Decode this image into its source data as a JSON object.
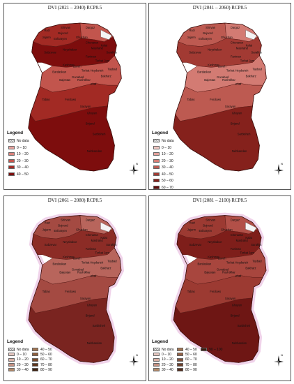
{
  "panels": [
    {
      "title": "DVI (2021 – 2040) RCP8.5",
      "legend_title": "Legend",
      "legend": [
        {
          "label": "No data",
          "color": "nodata"
        },
        {
          "label": "0 – 10",
          "color": "#e8a4a0"
        },
        {
          "label": "10 – 20",
          "color": "#d9807a"
        },
        {
          "label": "20 – 30",
          "color": "#c2554d"
        },
        {
          "label": "30 – 40",
          "color": "#a22a24"
        },
        {
          "label": "40 – 50",
          "color": "#7d0d0d"
        }
      ],
      "shades": [
        "#a22a24",
        "#c2554d",
        "#7d0d0d",
        "#c2554d",
        "#a22a24",
        "#7d0d0d"
      ]
    },
    {
      "title": "DVI (2041 – 2060) RCP8.5",
      "legend_title": "Legend",
      "legend": [
        {
          "label": "No data",
          "color": "nodata"
        },
        {
          "label": "0 – 10",
          "color": "#f2c9c4"
        },
        {
          "label": "10 – 20",
          "color": "#e3a09a"
        },
        {
          "label": "20 – 30",
          "color": "#d37b73"
        },
        {
          "label": "30 – 40",
          "color": "#bd5a51"
        },
        {
          "label": "40 – 50",
          "color": "#a23a33"
        },
        {
          "label": "50 – 60",
          "color": "#85211c"
        },
        {
          "label": "60 – 70",
          "color": "#610a0a"
        }
      ],
      "shades": [
        "#bd5a51",
        "#d37b73",
        "#a23a33",
        "#d37b73",
        "#bd5a51",
        "#85211c"
      ]
    },
    {
      "title": "DVI (2061 – 2080) RCP8.5",
      "legend_title": "Legend",
      "legend": [
        {
          "label": "No data",
          "color": "nodata"
        },
        {
          "label": "0 – 10",
          "color": "#e7c9c2"
        },
        {
          "label": "10 – 20",
          "color": "#d8aea3"
        },
        {
          "label": "20 – 30",
          "color": "#c49182"
        },
        {
          "label": "30 – 40",
          "color": "#b38a6a"
        },
        {
          "label": "40 – 50",
          "color": "#a27552"
        },
        {
          "label": "50 – 60",
          "color": "#8e5e3c"
        },
        {
          "label": "60 – 70",
          "color": "#7a4a2a"
        },
        {
          "label": "70 – 80",
          "color": "#5e361c"
        },
        {
          "label": "80 – 90",
          "color": "#3f220f"
        }
      ],
      "shades": [
        "#a44a42",
        "#b8655c",
        "#8c2c26",
        "#b8655c",
        "#a44a42",
        "#7a2420"
      ]
    },
    {
      "title": "DVI (2081 – 2100) RCP8.5",
      "legend_title": "Legend",
      "legend": [
        {
          "label": "No data",
          "color": "nodata"
        },
        {
          "label": "0 – 10",
          "color": "#e7c9c2"
        },
        {
          "label": "10 – 20",
          "color": "#d8aea3"
        },
        {
          "label": "20 – 30",
          "color": "#c49182"
        },
        {
          "label": "30 – 40",
          "color": "#b38a6a"
        },
        {
          "label": "40 – 50",
          "color": "#a27552"
        },
        {
          "label": "50 – 60",
          "color": "#946146"
        },
        {
          "label": "60 – 70",
          "color": "#82503a"
        },
        {
          "label": "70 – 80",
          "color": "#6d3f2c"
        },
        {
          "label": "80 – 90",
          "color": "#542d1d"
        },
        {
          "label": "90 – 100",
          "color": "#3a1a0d"
        }
      ],
      "shades": [
        "#9c3a32",
        "#b25048",
        "#7e1e1a",
        "#a8463e",
        "#9c3a32",
        "#6e1614"
      ]
    }
  ],
  "places": [
    "Razi",
    "Shirvan",
    "Bojnord",
    "Jajarm",
    "Esfarayen",
    "Dargaz",
    "Ghuchan",
    "Chenaran",
    "Mashahd",
    "Kalat",
    "Sarakhs",
    "Neyshabur",
    "Sabzevar",
    "Fariman",
    "Torbat Jam",
    "Kashmar",
    "Zaveh",
    "Torbat Heydarieh",
    "Taybad",
    "Bardaskan",
    "Bakharz",
    "Gonabad",
    "Bajestan",
    "Roshtkhar",
    "Khaf",
    "Tabas",
    "Ferdows",
    "Sarayan",
    "Ghayen",
    "Birjand",
    "Sarbisheh",
    "Nehbandan"
  ],
  "compass_label": "N"
}
